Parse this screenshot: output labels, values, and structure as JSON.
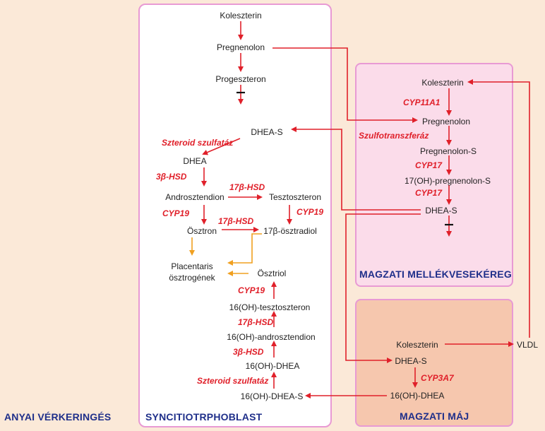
{
  "regions": {
    "maternal": "ANYAI VÉRKERINGÉS",
    "syncytio": "SYNCITIOTRPHOBLAST",
    "adrenal": "MAGZATI MELLÉKVESEKÉREG",
    "liver": "MAGZATI MÁJ"
  },
  "syncytio_nodes": {
    "cholesterol": "Koleszterin",
    "pregnenolone": "Pregnenolon",
    "progesterone": "Progeszteron",
    "dheas": "DHEA-S",
    "dhea": "DHEA",
    "androstenedione": "Androsztendion",
    "testosterone": "Tesztoszteron",
    "estrone": "Ösztron",
    "estradiol": "17β-ösztradiol",
    "placental_estrogens_1": "Placentaris",
    "placental_estrogens_2": "ösztrogének",
    "estriol": "Ösztriol",
    "oh_testosterone": "16(OH)-tesztoszteron",
    "oh_androstenedione": "16(OH)-androsztendion",
    "oh_dhea": "16(OH)-DHEA",
    "oh_dheas": "16(OH)-DHEA-S"
  },
  "syncytio_enzymes": {
    "sulfatase_1": "Szteroid szulfatáz",
    "hsd3b": "3β-HSD",
    "hsd17b_1": "17β-HSD",
    "cyp19_1": "CYP19",
    "hsd17b_2": "17β-HSD",
    "cyp19_2": "CYP19",
    "cyp19_3": "CYP19",
    "hsd17b_3": "17β-HSD",
    "hsd3b_2": "3β-HSD",
    "sulfatase_2": "Szteroid szulfatáz"
  },
  "adrenal_nodes": {
    "cholesterol": "Koleszterin",
    "pregnenolone": "Pregnenolon",
    "pregnenolone_s": "Pregnenolon-S",
    "oh_pregnenolone_s": "17(OH)-pregnenolon-S",
    "dheas": "DHEA-S"
  },
  "adrenal_enzymes": {
    "cyp11a1": "CYP11A1",
    "sulfotransferase": "Szulfotranszferáz",
    "cyp17_1": "CYP17",
    "cyp17_2": "CYP17"
  },
  "liver_nodes": {
    "cholesterol": "Koleszterin",
    "dheas": "DHEA-S",
    "oh_dhea": "16(OH)-DHEA"
  },
  "liver_enzymes": {
    "cyp3a7": "CYP3A7"
  },
  "vldl": "VLDL",
  "colors": {
    "arrow_red": "#e0202a",
    "arrow_orange": "#f0a020",
    "label_blue": "#1f2f8a",
    "box_border": "#e89ad4",
    "adrenal_fill": "#fbdcea",
    "liver_fill": "#f6c7ae",
    "background": "#fbe9d8"
  }
}
